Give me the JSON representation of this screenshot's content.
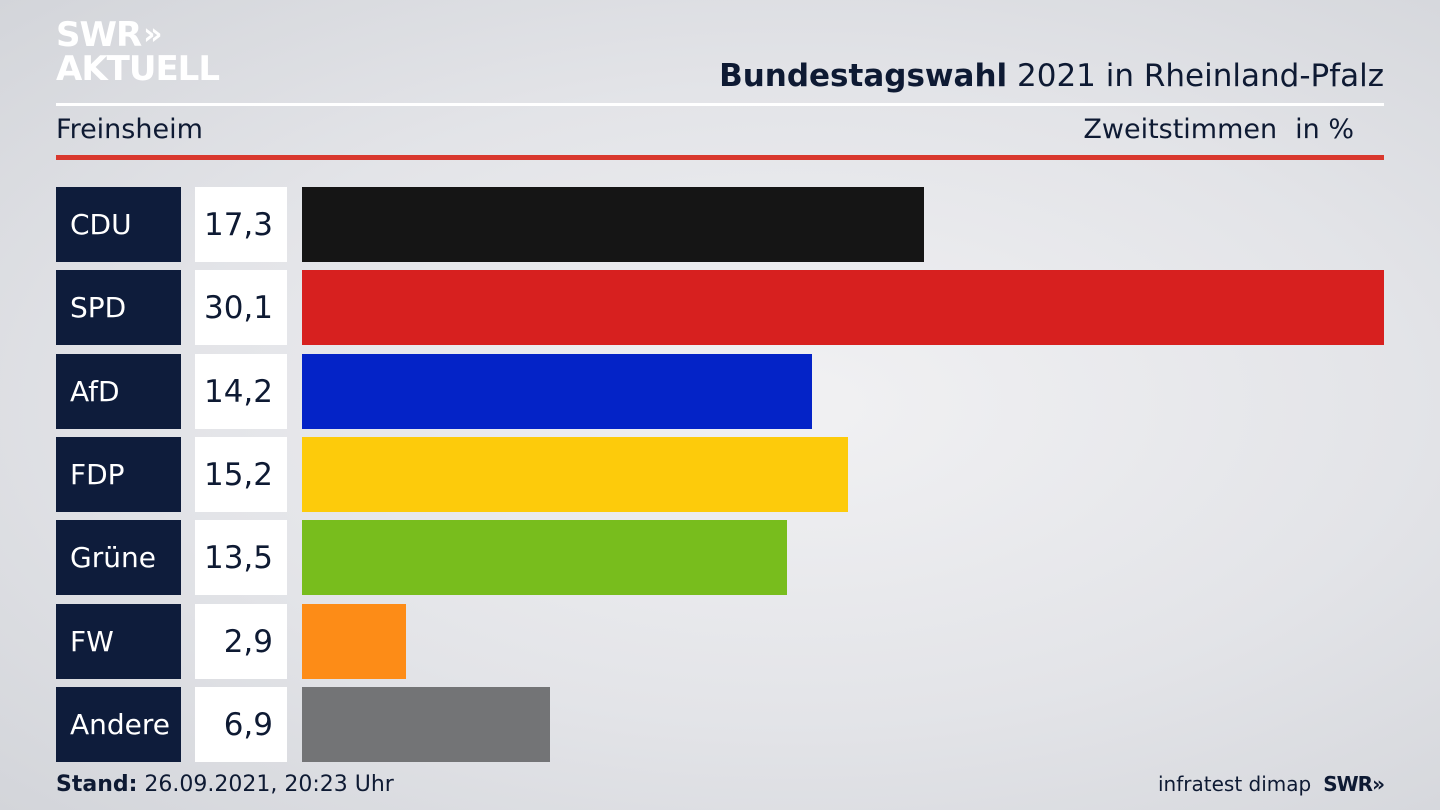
{
  "header": {
    "logo_line1": "SWR",
    "logo_chevrons": "»",
    "logo_line2": "AKTUELL",
    "title_bold": "Bundestagswahl",
    "title_rest": " 2021 in Rheinland-Pfalz",
    "region": "Freinsheim",
    "measure": "Zweitstimmen",
    "unit": "in %"
  },
  "footer": {
    "stand_label": "Stand:",
    "stand_value": " 26.09.2021, 20:23 Uhr",
    "source": "infratest dimap",
    "brand": "SWR»"
  },
  "chart_data": {
    "type": "bar",
    "orientation": "horizontal",
    "title": "Bundestagswahl 2021 in Rheinland-Pfalz",
    "subtitle": "Freinsheim",
    "measure": "Zweitstimmen",
    "unit": "in %",
    "categories": [
      "CDU",
      "SPD",
      "AfD",
      "FDP",
      "Grüne",
      "FW",
      "Andere"
    ],
    "values": [
      17.3,
      30.1,
      14.2,
      15.2,
      13.5,
      2.9,
      6.9
    ],
    "value_labels": [
      "17,3",
      "30,1",
      "14,2",
      "15,2",
      "13,5",
      "2,9",
      "6,9"
    ],
    "colors": [
      "#151515",
      "#d7201f",
      "#0423c7",
      "#fdcb0b",
      "#78bd1d",
      "#fd8c17",
      "#737476"
    ],
    "xlim": [
      0,
      30.1
    ]
  }
}
